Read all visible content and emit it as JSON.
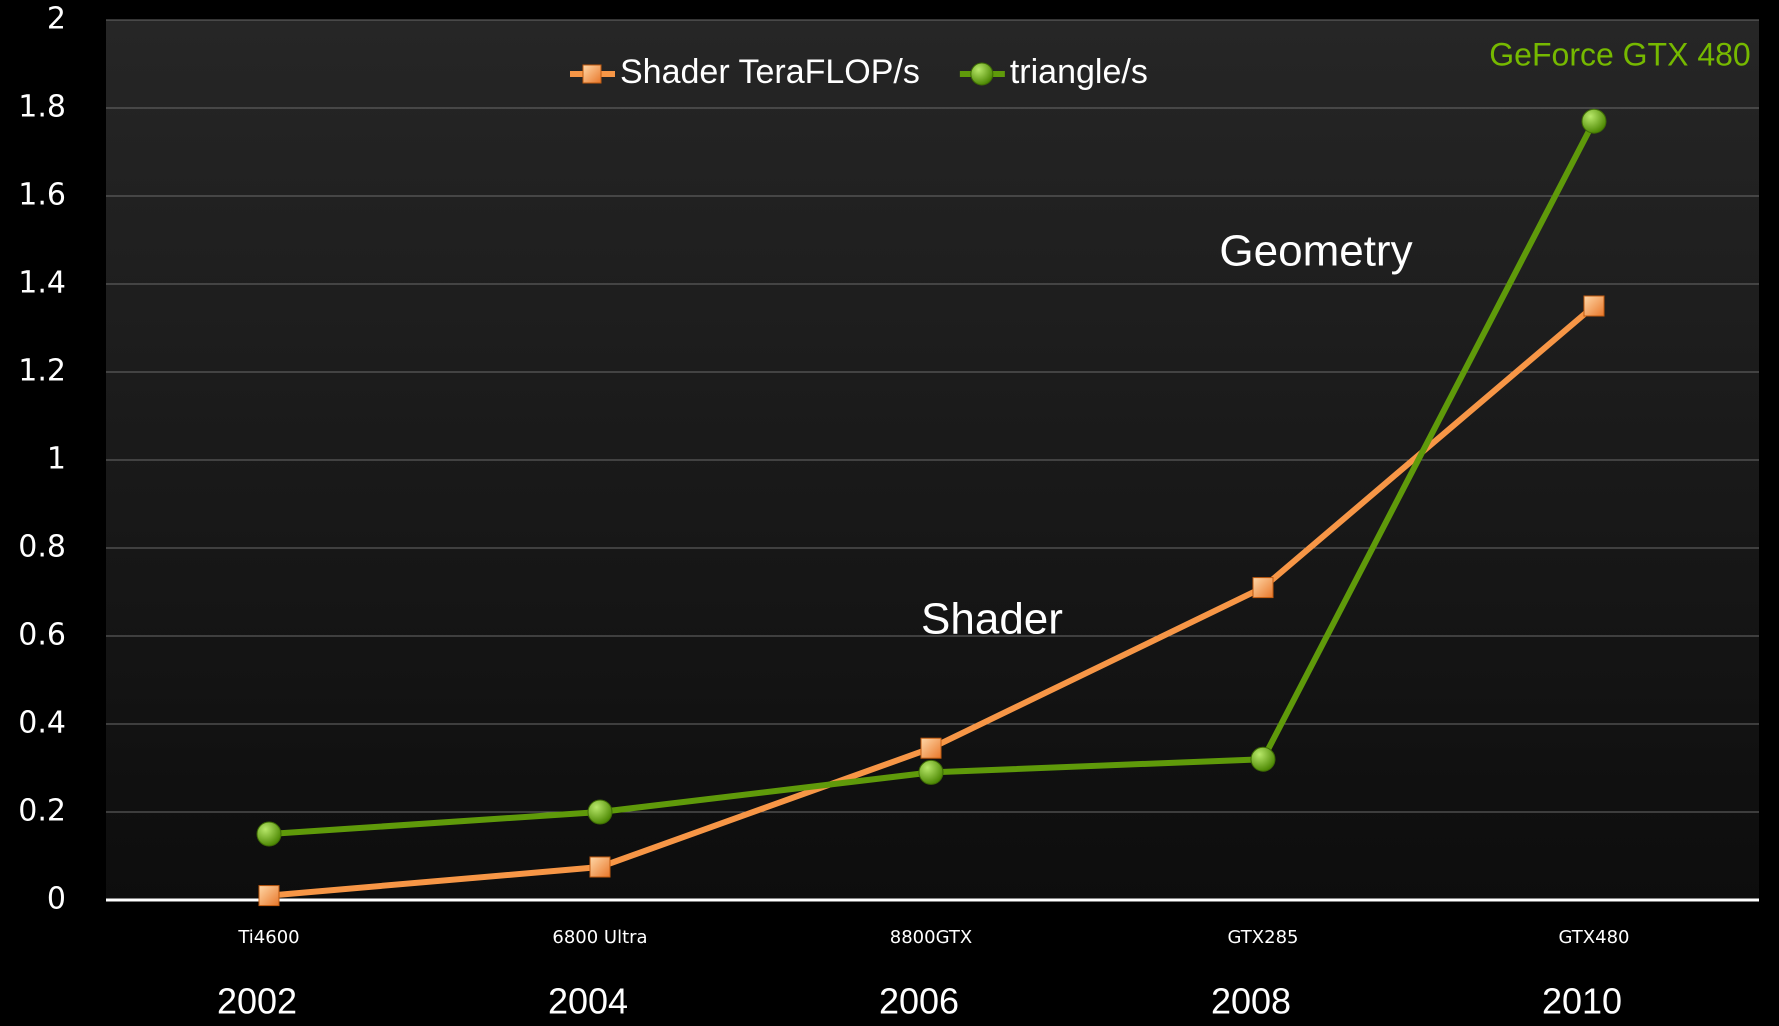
{
  "chart_data": {
    "type": "line",
    "categories": [
      "Ti4600",
      "6800 Ultra",
      "8800GTX",
      "GTX285",
      "GTX480"
    ],
    "series": [
      {
        "name": "Shader TeraFLOP/s",
        "color": "#f79646",
        "marker": "square",
        "values": [
          0.01,
          0.075,
          0.345,
          0.71,
          1.35
        ]
      },
      {
        "name": "triangle/s",
        "color": "#5f9a0a",
        "marker": "circle",
        "values": [
          0.15,
          0.2,
          0.29,
          0.32,
          1.77
        ]
      }
    ],
    "ylim": [
      0,
      2
    ],
    "yticks": [
      0,
      0.2,
      0.4,
      0.6,
      0.8,
      1,
      1.2,
      1.4,
      1.6,
      1.8,
      2
    ],
    "grid": true,
    "legend": "top",
    "years": [
      "2002",
      "2004",
      "2006",
      "2008",
      "2010"
    ],
    "annotations": [
      {
        "text": "Shader",
        "color": "#ffffff"
      },
      {
        "text": "Geometry",
        "color": "#ffffff"
      },
      {
        "text": "GeForce GTX 480",
        "color": "#76b900"
      }
    ]
  }
}
